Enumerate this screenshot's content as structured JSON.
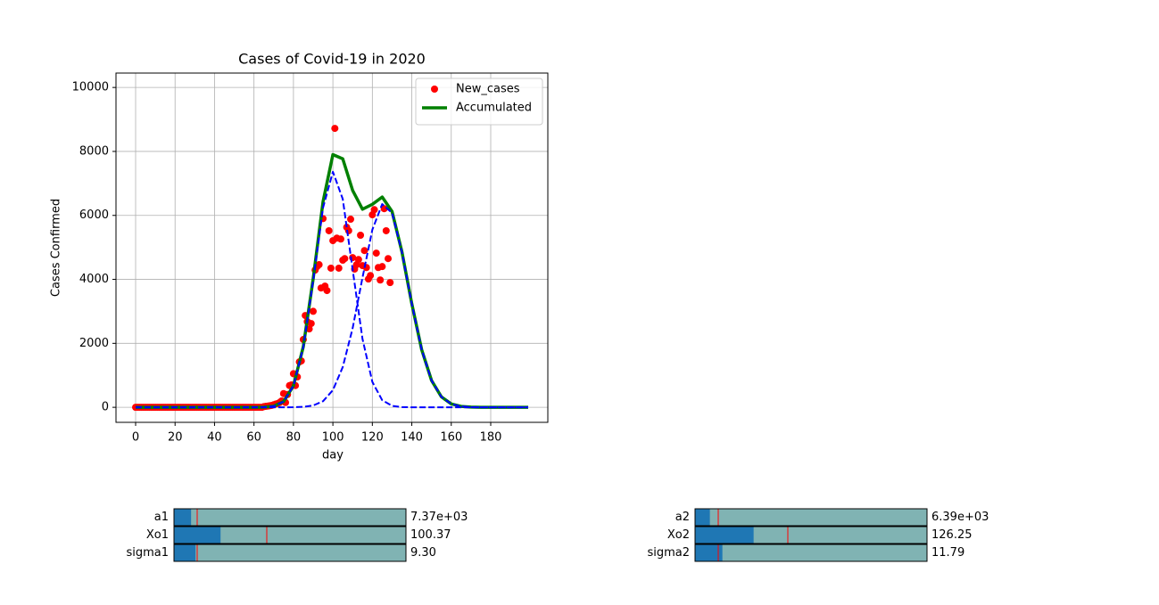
{
  "chart_data": {
    "type": "line",
    "title": "Cases of Covid-19 in 2020",
    "xlabel": "day",
    "ylabel": "Cases Confirmed",
    "xlim": [
      -9.95,
      208.95
    ],
    "ylim": [
      -470,
      10450
    ],
    "xticks": [
      0,
      20,
      40,
      60,
      80,
      100,
      120,
      140,
      160,
      180
    ],
    "yticks": [
      0,
      2000,
      4000,
      6000,
      8000,
      10000
    ],
    "grid": true,
    "legend": "upper right",
    "series": [
      {
        "name": "New_cases",
        "type": "scatter",
        "color": "#ff0000",
        "x": [
          0,
          1,
          2,
          3,
          4,
          5,
          6,
          7,
          8,
          9,
          10,
          11,
          12,
          13,
          14,
          15,
          16,
          17,
          18,
          19,
          20,
          21,
          22,
          23,
          24,
          25,
          26,
          27,
          28,
          29,
          30,
          31,
          32,
          33,
          34,
          35,
          36,
          37,
          38,
          39,
          40,
          41,
          42,
          43,
          44,
          45,
          46,
          47,
          48,
          49,
          50,
          51,
          52,
          53,
          54,
          55,
          56,
          57,
          58,
          59,
          60,
          61,
          62,
          63,
          64,
          65,
          66,
          67,
          68,
          69,
          70,
          71,
          72,
          73,
          74,
          75,
          76,
          77,
          78,
          79,
          80,
          81,
          82,
          83,
          84,
          85,
          86,
          87,
          88,
          89,
          90,
          91,
          92,
          93,
          94,
          95,
          96,
          97,
          98,
          99,
          100,
          101,
          102,
          103,
          104,
          105,
          106,
          107,
          108,
          109,
          110,
          111,
          112,
          113,
          114,
          115,
          116,
          117,
          118,
          119,
          120,
          121,
          122,
          123,
          124,
          125,
          126,
          127,
          128,
          129
        ],
        "values": [
          0,
          0,
          0,
          0,
          0,
          0,
          0,
          0,
          0,
          0,
          0,
          0,
          0,
          0,
          0,
          0,
          0,
          0,
          0,
          0,
          0,
          0,
          0,
          0,
          0,
          0,
          0,
          0,
          0,
          0,
          0,
          0,
          0,
          0,
          0,
          0,
          0,
          0,
          0,
          0,
          0,
          0,
          0,
          0,
          0,
          0,
          0,
          0,
          0,
          0,
          0,
          0,
          0,
          0,
          0,
          0,
          0,
          0,
          0,
          0,
          0,
          0,
          0,
          0,
          0,
          20,
          30,
          40,
          50,
          60,
          80,
          100,
          120,
          150,
          200,
          430,
          150,
          400,
          680,
          700,
          1050,
          680,
          950,
          1420,
          1450,
          2120,
          2870,
          2680,
          2450,
          2620,
          3000,
          4290,
          4400,
          4460,
          3730,
          5900,
          3790,
          3650,
          5520,
          4350,
          5210,
          8720,
          5290,
          4350,
          5260,
          4600,
          4650,
          5630,
          5520,
          5880,
          4680,
          4320,
          4460,
          4620,
          5380,
          4430,
          4900,
          4370,
          4010,
          4120,
          6020,
          6180,
          4820,
          4370,
          3980,
          4400,
          6210,
          5520,
          4650,
          3900
        ]
      },
      {
        "name": "Accumulated",
        "type": "line",
        "color": "#008000",
        "width": 3.5,
        "x": [
          0,
          5,
          10,
          15,
          20,
          25,
          30,
          35,
          40,
          45,
          50,
          55,
          60,
          65,
          70,
          75,
          80,
          85,
          90,
          95,
          100,
          105,
          110,
          115,
          120,
          125,
          130,
          135,
          140,
          145,
          150,
          155,
          160,
          165,
          170,
          175,
          180,
          185,
          190,
          195,
          199
        ],
        "values": [
          0,
          0,
          0,
          0,
          0,
          0,
          0,
          0,
          0,
          0,
          0,
          0,
          0.6,
          5.3,
          35.7,
          178.5,
          671.9,
          1895,
          4014.5,
          6429,
          7900,
          7770,
          6783,
          6192,
          6347,
          6575,
          6121,
          4859.2,
          3237.8,
          1804,
          840,
          327,
          106,
          28.8,
          6.5,
          1.2,
          0.2,
          0,
          0,
          0,
          0
        ]
      },
      {
        "type": "line",
        "color": "#0000ff",
        "style": "dashed",
        "width": 2,
        "x": [
          0,
          5,
          10,
          15,
          20,
          25,
          30,
          35,
          40,
          45,
          50,
          55,
          60,
          65,
          70,
          75,
          80,
          85,
          90,
          95,
          100,
          105,
          110,
          115,
          120,
          125,
          130,
          135,
          140,
          145,
          150,
          155,
          160,
          165,
          170,
          175,
          180,
          185,
          190,
          195,
          199
        ],
        "values": [
          0,
          0,
          0,
          0,
          0,
          0,
          0,
          0,
          0,
          0,
          0,
          0,
          0.6,
          5.3,
          35.7,
          178.5,
          669,
          1881,
          3958,
          6239,
          7364,
          6511,
          4312,
          2139,
          794,
          221,
          46,
          7.2,
          0.8,
          0,
          0,
          0,
          0,
          0,
          0,
          0,
          0,
          0,
          0,
          0,
          0
        ]
      },
      {
        "type": "line",
        "color": "#0000ff",
        "style": "dashed",
        "width": 2,
        "x": [
          0,
          5,
          10,
          15,
          20,
          25,
          30,
          35,
          40,
          45,
          50,
          55,
          60,
          65,
          70,
          75,
          80,
          85,
          90,
          95,
          100,
          105,
          110,
          115,
          120,
          125,
          130,
          135,
          140,
          145,
          150,
          155,
          160,
          165,
          170,
          175,
          180,
          185,
          190,
          195,
          199
        ],
        "values": [
          0,
          0,
          0,
          0,
          0,
          0,
          0,
          0,
          0,
          0,
          0,
          0,
          0,
          0,
          0,
          0,
          2.9,
          14,
          56.5,
          190,
          536,
          1259,
          2471,
          4053,
          5553,
          6354,
          6075,
          4852,
          3237,
          1804,
          840,
          327,
          106,
          28.8,
          6.5,
          1.2,
          0.2,
          0,
          0,
          0,
          0
        ]
      }
    ]
  },
  "sliders": [
    {
      "label": "a1",
      "value": 7370,
      "value_label": "7.37e+03",
      "valmin": 0,
      "valmax": 100000,
      "valinit": 10000
    },
    {
      "label": "Xo1",
      "value": 100.37,
      "valmin": 0,
      "valmax": 500,
      "valinit": 200
    },
    {
      "label": "sigma1",
      "value": 9.3,
      "value_label": "9.30",
      "valmin": 0,
      "valmax": 100,
      "valinit": 10
    },
    {
      "label": "a2",
      "value": 6390,
      "value_label": "6.39e+03",
      "valmin": 0,
      "valmax": 100000,
      "valinit": 10000
    },
    {
      "label": "Xo2",
      "value": 126.25,
      "valmin": 0,
      "valmax": 500,
      "valinit": 200
    },
    {
      "label": "sigma2",
      "value": 11.79,
      "valmin": 0,
      "valmax": 100,
      "valinit": 10
    }
  ]
}
